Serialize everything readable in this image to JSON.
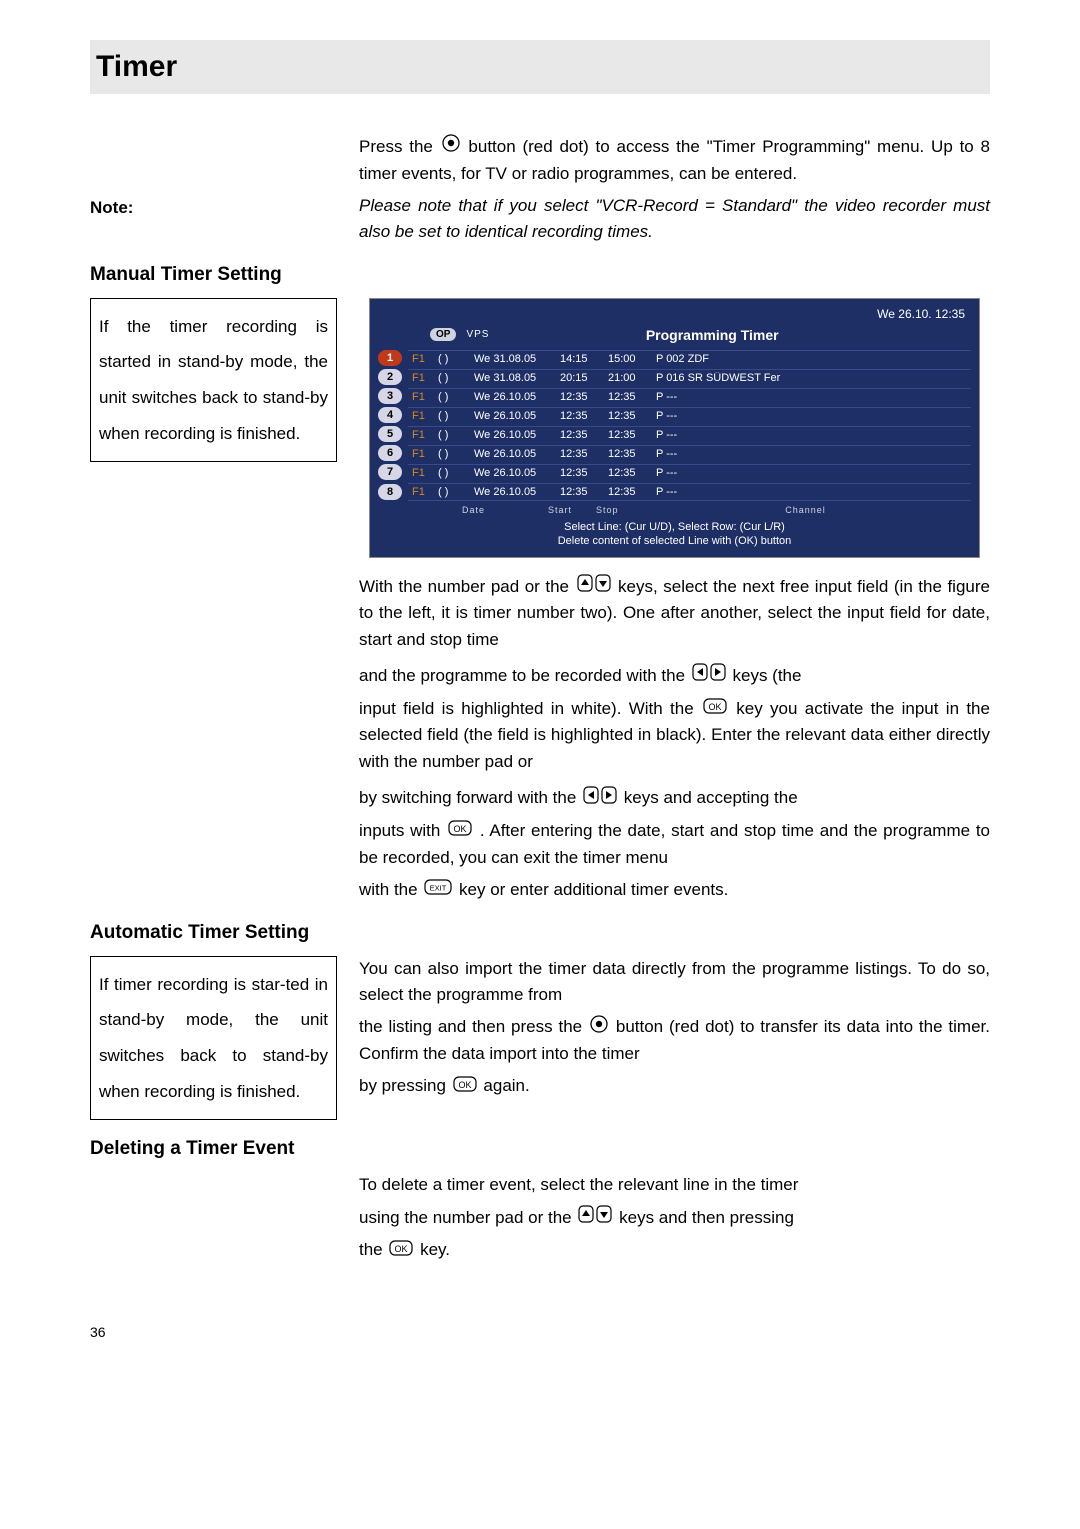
{
  "page": {
    "title": "Timer",
    "number": "36",
    "note_label": "Note:"
  },
  "intro": {
    "p1a": "Press the ",
    "p1b": " button (red dot) to access the \"Timer Programming\" menu. Up to 8 timer events, for TV or radio programmes, can be entered.",
    "note_p": "Please note that if you select \"VCR-Record = Standard\" the video recorder must also be set to identical recording times."
  },
  "manual": {
    "heading": "Manual Timer Setting",
    "sidebar": "If the timer recording is started in stand-by mode, the unit switches back to stand-by when recording is finished.",
    "p1a": "With the number pad or the ",
    "p1b": " keys, select the next free input field (in the figure to the left, it is timer number two). One after another, select the input field for date, start and stop time",
    "p2a": "and the programme to be recorded with the ",
    "p2b": " keys (the",
    "p3a": "input field is highlighted in white). With the ",
    "p3b": " key you activate the input in the selected field (the field is highlighted in black). Enter the relevant data either directly with the number pad or",
    "p4a": "by switching forward with the ",
    "p4b": " keys and accepting the",
    "p5a": "inputs with ",
    "p5b": ". After entering the date, start and stop time and the programme to be recorded, you can exit the timer menu",
    "p6a": "with the ",
    "p6b": " key or enter additional timer events."
  },
  "automatic": {
    "heading": "Automatic Timer Setting",
    "sidebar": "If timer recording is star-ted in stand-by mode, the unit switches back to stand-by when recording is finished.",
    "p1a": "You can also import the timer data directly from the programme listings. To do so, select the programme from",
    "p2a": "the listing and then press the ",
    "p2b": " button (red dot) to transfer its data into the timer. Confirm the data import into the timer",
    "p3a": "by pressing ",
    "p3b": " again."
  },
  "deleting": {
    "heading": "Deleting a Timer Event",
    "p1a": "To delete a timer event, select the relevant line in the timer",
    "p2a": "using the number pad or the ",
    "p2b": " keys and then pressing",
    "p3a": "the ",
    "p3b": " key."
  },
  "icons": {
    "red_dot": "red-dot",
    "up_down": "up-down",
    "left_right": "left-right",
    "ok": "OK",
    "exit": "EXIT"
  },
  "screenshot": {
    "datetime": "We 26.10.    12:35",
    "op": "OP",
    "vps": "VPS",
    "title": "Programming Timer",
    "rows": [
      {
        "n": "1",
        "active": true,
        "f1": "F1",
        "vps": "(   )",
        "date": "We 31.08.05",
        "start": "14:15",
        "stop": "15:00",
        "ch": "P 002 ZDF"
      },
      {
        "n": "2",
        "active": false,
        "f1": "F1",
        "vps": "(   )",
        "date": "We 31.08.05",
        "start": "20:15",
        "stop": "21:00",
        "ch": "P 016 SR SÜDWEST Fer"
      },
      {
        "n": "3",
        "active": false,
        "f1": "F1",
        "vps": "(   )",
        "date": "We 26.10.05",
        "start": "12:35",
        "stop": "12:35",
        "ch": "P ---"
      },
      {
        "n": "4",
        "active": false,
        "f1": "F1",
        "vps": "(   )",
        "date": "We 26.10.05",
        "start": "12:35",
        "stop": "12:35",
        "ch": "P ---"
      },
      {
        "n": "5",
        "active": false,
        "f1": "F1",
        "vps": "(   )",
        "date": "We 26.10.05",
        "start": "12:35",
        "stop": "12:35",
        "ch": "P ---"
      },
      {
        "n": "6",
        "active": false,
        "f1": "F1",
        "vps": "(   )",
        "date": "We 26.10.05",
        "start": "12:35",
        "stop": "12:35",
        "ch": "P ---"
      },
      {
        "n": "7",
        "active": false,
        "f1": "F1",
        "vps": "(   )",
        "date": "We 26.10.05",
        "start": "12:35",
        "stop": "12:35",
        "ch": "P ---"
      },
      {
        "n": "8",
        "active": false,
        "f1": "F1",
        "vps": "(   )",
        "date": "We 26.10.05",
        "start": "12:35",
        "stop": "12:35",
        "ch": "P ---"
      }
    ],
    "col_hdr": {
      "date": "Date",
      "start": "Start",
      "stop": "Stop",
      "ch": "Channel"
    },
    "footer1": "Select Line: (Cur U/D), Select Row: (Cur L/R)",
    "footer2": "Delete content of selected Line with (OK) button"
  },
  "colors": {
    "title_bg": "#e8e8e8",
    "tv_bg": "#1e2f66",
    "row_active": "#c03a1a",
    "row_badge": "#d6d6e6",
    "f1_color": "#d78a1a"
  }
}
